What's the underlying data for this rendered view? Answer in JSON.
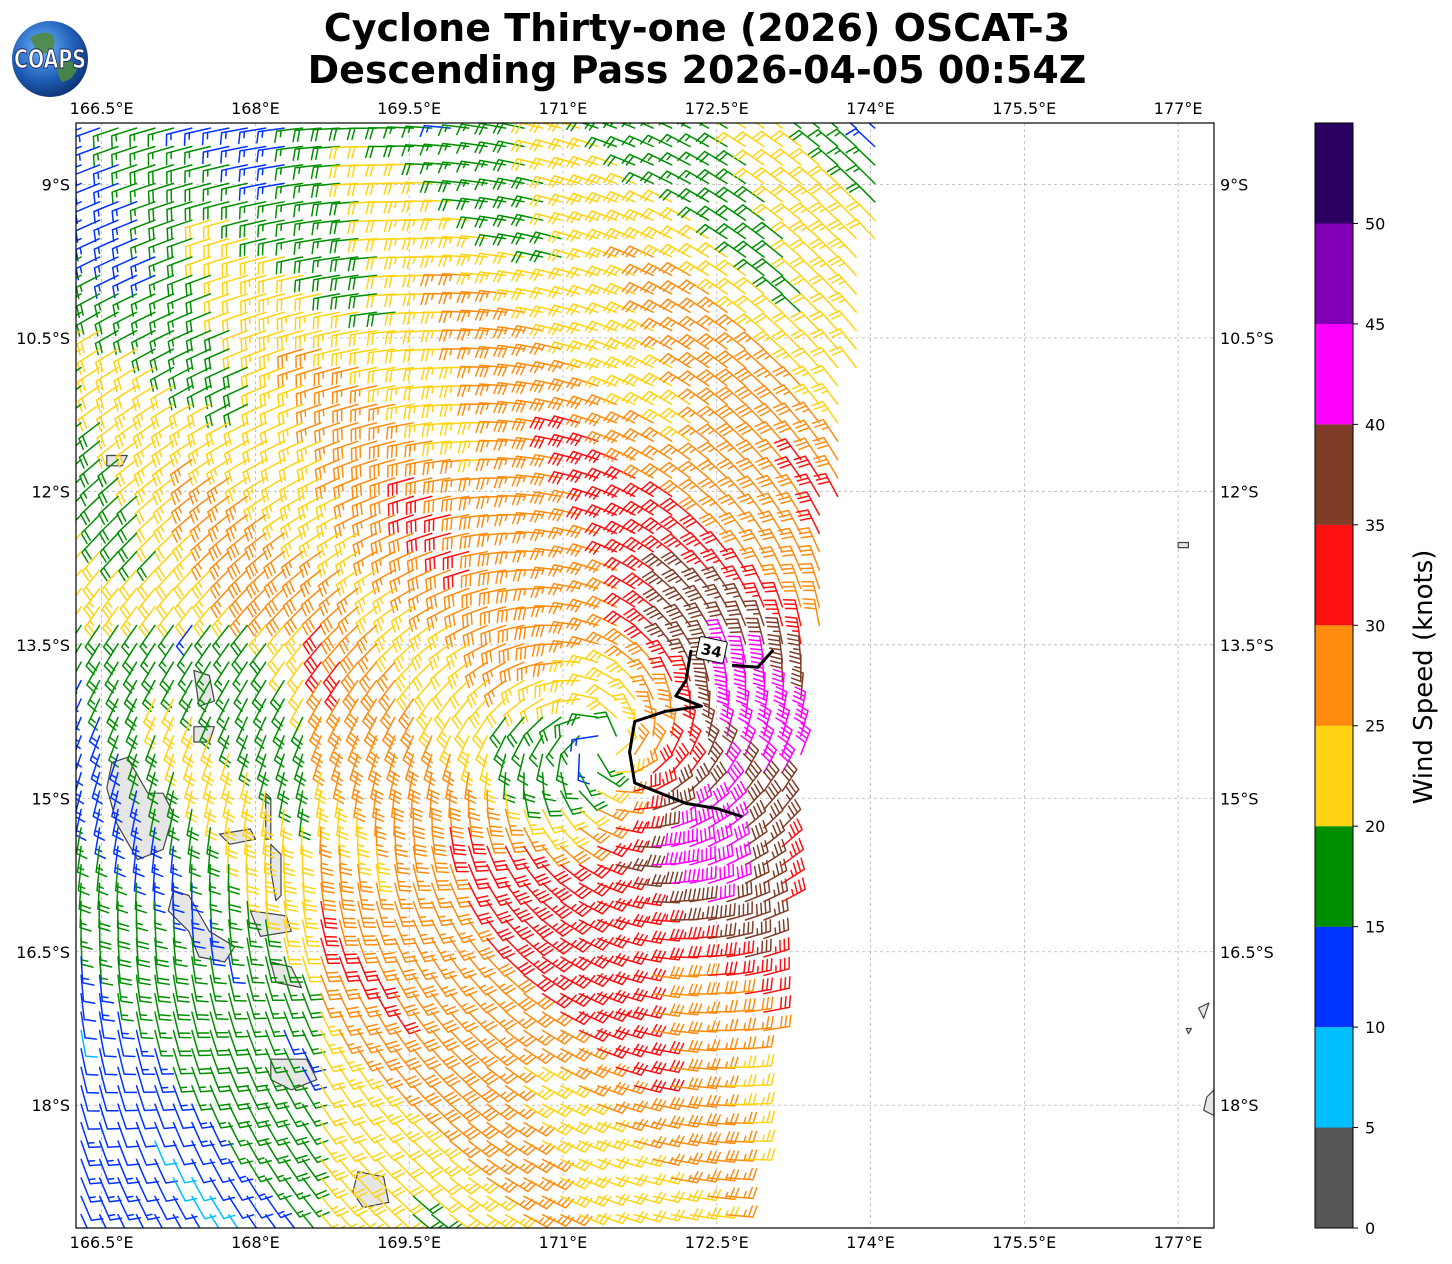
{
  "title": {
    "line1": "Cyclone Thirty-one (2026) OSCAT-3",
    "line2": "Descending Pass 2026-04-05 00:54Z"
  },
  "logo": {
    "text": "COAPS",
    "icon": "globe-logo-icon"
  },
  "map": {
    "lon_range": [
      166.25,
      177.35
    ],
    "lat_range": [
      -19.2,
      -8.4
    ],
    "lon_ticks": [
      {
        "value": 166.5,
        "label": "166.5°E"
      },
      {
        "value": 168.0,
        "label": "168°E"
      },
      {
        "value": 169.5,
        "label": "169.5°E"
      },
      {
        "value": 171.0,
        "label": "171°E"
      },
      {
        "value": 172.5,
        "label": "172.5°E"
      },
      {
        "value": 174.0,
        "label": "174°E"
      },
      {
        "value": 175.5,
        "label": "175.5°E"
      },
      {
        "value": 177.0,
        "label": "177°E"
      }
    ],
    "lat_ticks": [
      {
        "value": -9.0,
        "label": "9°S"
      },
      {
        "value": -10.5,
        "label": "10.5°S"
      },
      {
        "value": -12.0,
        "label": "12°S"
      },
      {
        "value": -13.5,
        "label": "13.5°S"
      },
      {
        "value": -15.0,
        "label": "15°S"
      },
      {
        "value": -16.5,
        "label": "16.5°S"
      },
      {
        "value": -18.0,
        "label": "18°S"
      }
    ],
    "grid": true,
    "cyclone_center": {
      "lon": 171.4,
      "lat": -14.5
    },
    "swath": {
      "west_lon": 166.25,
      "east_lon_north": 174.2,
      "east_lon_south": 172.7
    },
    "contour_34kt": {
      "label": "34",
      "points": [
        [
          172.25,
          -13.55
        ],
        [
          172.2,
          -13.85
        ],
        [
          172.1,
          -14.0
        ],
        [
          172.35,
          -14.1
        ],
        [
          172.0,
          -14.15
        ],
        [
          171.7,
          -14.25
        ],
        [
          171.65,
          -14.55
        ],
        [
          171.7,
          -14.85
        ],
        [
          171.95,
          -14.95
        ],
        [
          172.2,
          -15.05
        ],
        [
          172.5,
          -15.1
        ],
        [
          172.75,
          -15.18
        ]
      ],
      "arc2": [
        [
          172.65,
          -13.7
        ],
        [
          172.9,
          -13.72
        ],
        [
          173.05,
          -13.55
        ]
      ]
    },
    "land": [
      {
        "name": "Espiritu Santo",
        "points": [
          [
            166.6,
            -14.65
          ],
          [
            166.75,
            -14.6
          ],
          [
            166.95,
            -14.95
          ],
          [
            167.1,
            -14.95
          ],
          [
            167.2,
            -15.15
          ],
          [
            167.1,
            -15.5
          ],
          [
            166.85,
            -15.6
          ],
          [
            166.65,
            -15.25
          ],
          [
            166.55,
            -14.9
          ]
        ]
      },
      {
        "name": "Malekula",
        "points": [
          [
            167.2,
            -15.9
          ],
          [
            167.35,
            -15.95
          ],
          [
            167.55,
            -16.3
          ],
          [
            167.8,
            -16.45
          ],
          [
            167.7,
            -16.6
          ],
          [
            167.45,
            -16.55
          ],
          [
            167.35,
            -16.3
          ],
          [
            167.15,
            -16.1
          ]
        ]
      },
      {
        "name": "Ambae",
        "points": [
          [
            167.65,
            -15.35
          ],
          [
            167.95,
            -15.3
          ],
          [
            168.0,
            -15.4
          ],
          [
            167.75,
            -15.45
          ]
        ]
      },
      {
        "name": "Maewo",
        "points": [
          [
            168.1,
            -14.95
          ],
          [
            168.15,
            -15.0
          ],
          [
            168.15,
            -15.4
          ],
          [
            168.1,
            -15.4
          ]
        ]
      },
      {
        "name": "Pentecost",
        "points": [
          [
            168.15,
            -15.45
          ],
          [
            168.25,
            -15.55
          ],
          [
            168.25,
            -15.95
          ],
          [
            168.2,
            -16.0
          ],
          [
            168.15,
            -15.7
          ]
        ]
      },
      {
        "name": "Ambrym",
        "points": [
          [
            167.95,
            -16.1
          ],
          [
            168.3,
            -16.15
          ],
          [
            168.35,
            -16.3
          ],
          [
            168.05,
            -16.35
          ]
        ]
      },
      {
        "name": "Epi",
        "points": [
          [
            168.15,
            -16.6
          ],
          [
            168.35,
            -16.65
          ],
          [
            168.45,
            -16.85
          ],
          [
            168.2,
            -16.8
          ]
        ]
      },
      {
        "name": "Efate",
        "points": [
          [
            168.15,
            -17.55
          ],
          [
            168.5,
            -17.55
          ],
          [
            168.6,
            -17.75
          ],
          [
            168.35,
            -17.85
          ],
          [
            168.15,
            -17.75
          ]
        ]
      },
      {
        "name": "Erromango",
        "points": [
          [
            169.0,
            -18.65
          ],
          [
            169.25,
            -18.7
          ],
          [
            169.3,
            -18.95
          ],
          [
            169.05,
            -19.0
          ],
          [
            168.95,
            -18.85
          ]
        ]
      },
      {
        "name": "Banks 1",
        "points": [
          [
            167.4,
            -13.75
          ],
          [
            167.55,
            -13.8
          ],
          [
            167.6,
            -14.05
          ],
          [
            167.45,
            -14.1
          ]
        ]
      },
      {
        "name": "Banks 2",
        "points": [
          [
            167.4,
            -14.3
          ],
          [
            167.6,
            -14.3
          ],
          [
            167.55,
            -14.45
          ],
          [
            167.4,
            -14.45
          ]
        ]
      },
      {
        "name": "Torres",
        "points": [
          [
            166.55,
            -11.65
          ],
          [
            166.75,
            -11.65
          ],
          [
            166.7,
            -11.75
          ],
          [
            166.55,
            -11.75
          ]
        ]
      },
      {
        "name": "Fiji Rotuma",
        "points": [
          [
            177.0,
            -12.5
          ],
          [
            177.1,
            -12.5
          ],
          [
            177.1,
            -12.55
          ],
          [
            177.0,
            -12.55
          ]
        ]
      },
      {
        "name": "Fiji islet",
        "points": [
          [
            177.2,
            -17.05
          ],
          [
            177.3,
            -17.0
          ],
          [
            177.25,
            -17.15
          ]
        ]
      },
      {
        "name": "Fiji islet 2",
        "points": [
          [
            177.08,
            -17.25
          ],
          [
            177.13,
            -17.25
          ],
          [
            177.1,
            -17.3
          ]
        ]
      },
      {
        "name": "Viti Levu edge",
        "points": [
          [
            177.35,
            -17.85
          ],
          [
            177.28,
            -17.92
          ],
          [
            177.25,
            -18.05
          ],
          [
            177.35,
            -18.1
          ]
        ]
      }
    ]
  },
  "colorbar": {
    "label": "Wind Speed (knots)",
    "range": [
      0,
      55
    ],
    "bins": [
      {
        "from": 0,
        "to": 5,
        "color": "#555555"
      },
      {
        "from": 5,
        "to": 10,
        "color": "#00bfff"
      },
      {
        "from": 10,
        "to": 15,
        "color": "#0033ff"
      },
      {
        "from": 15,
        "to": 20,
        "color": "#008f00"
      },
      {
        "from": 20,
        "to": 25,
        "color": "#ffd311"
      },
      {
        "from": 25,
        "to": 30,
        "color": "#ff8c0f"
      },
      {
        "from": 30,
        "to": 35,
        "color": "#ff1010"
      },
      {
        "from": 35,
        "to": 40,
        "color": "#7f3d28"
      },
      {
        "from": 40,
        "to": 45,
        "color": "#ff00ff"
      },
      {
        "from": 45,
        "to": 50,
        "color": "#8000b8"
      },
      {
        "from": 50,
        "to": 55,
        "color": "#2a0060"
      }
    ],
    "tick_labels": [
      "0",
      "5",
      "10",
      "15",
      "20",
      "25",
      "30",
      "35",
      "40",
      "45",
      "50"
    ]
  }
}
